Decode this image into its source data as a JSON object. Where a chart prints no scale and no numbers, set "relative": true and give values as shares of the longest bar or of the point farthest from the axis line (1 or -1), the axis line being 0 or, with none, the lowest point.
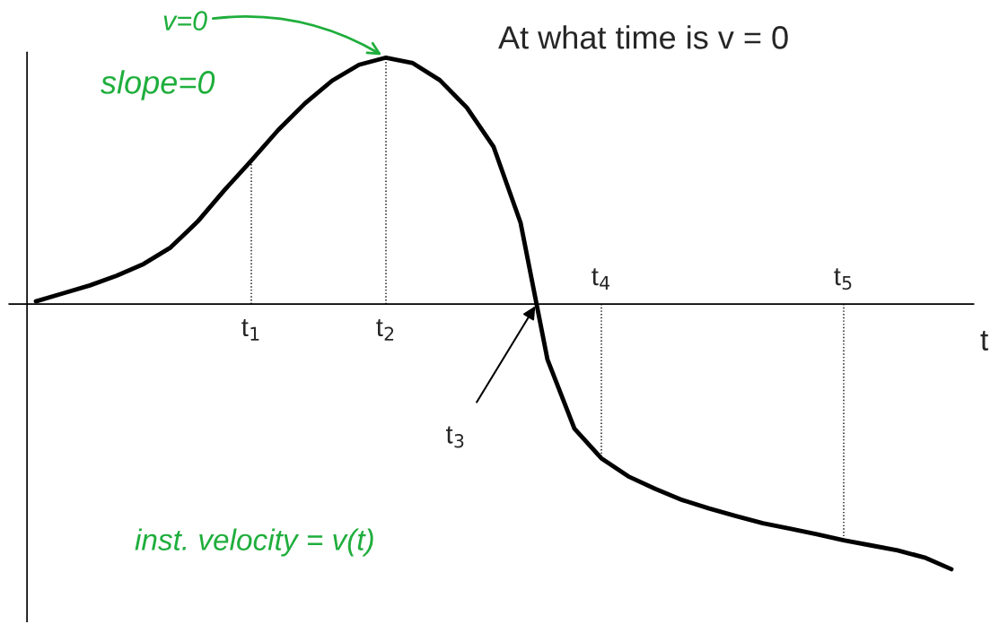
{
  "chart_data": {
    "type": "line",
    "relative": true,
    "title": "At what time is v = 0",
    "xlabel": "t",
    "categories": [
      null,
      null,
      null,
      null,
      null,
      null,
      null,
      null,
      "t$_{1}$",
      null,
      null,
      null,
      null,
      "t$_{2}$",
      null,
      null,
      null,
      null,
      null,
      null,
      null,
      "t$_{4}$",
      null,
      null,
      null,
      null,
      null,
      null,
      null,
      null,
      "t$_{5}$",
      null,
      null,
      null,
      null
    ],
    "series": [
      {
        "color": "#000000",
        "values": [
          0.01,
          0.04,
          0.07,
          0.107,
          0.151,
          0.213,
          0.31,
          0.429,
          0.541,
          0.656,
          0.757,
          0.842,
          0.902,
          0.929,
          0.908,
          0.844,
          0.741,
          0.592,
          0.306,
          -0.21,
          -0.47,
          -0.582,
          -0.65,
          -0.697,
          -0.739,
          -0.771,
          -0.8,
          -0.827,
          -0.847,
          -0.868,
          -0.891,
          -0.91,
          -0.929,
          -0.956,
          -1
        ]
      }
    ],
    "ref_lines": [
      {
        "axis": "x",
        "value": "t$_{1}$",
        "line_style": "dotted"
      },
      {
        "axis": "x",
        "value": "t$_{2}$",
        "line_style": "dotted"
      },
      {
        "axis": "x",
        "value": "t$_{4}$",
        "line_style": "dotted"
      },
      {
        "axis": "x",
        "value": "t$_{5}$",
        "line_style": "dotted"
      }
    ],
    "annotations": [
      "t$_{3}$",
      {
        "text": "v=0",
        "x": "t$_{2}$",
        "y": 0.929
      },
      "slope=0",
      "inst. velocity = v(t)"
    ],
    "line_style": "solid",
    "marker": "none",
    "legend": false
  }
}
